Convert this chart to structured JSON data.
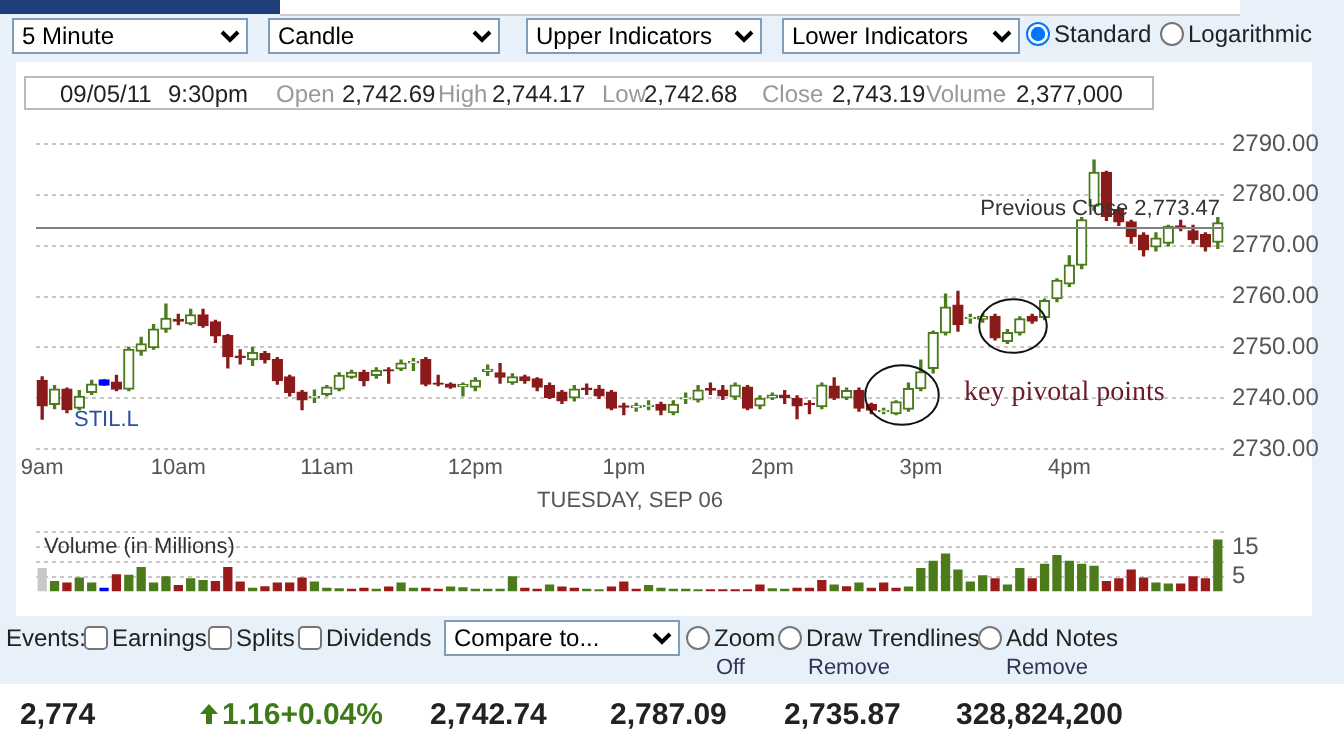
{
  "chart_data": [
    {
      "type": "candlestick",
      "categories": [
        "9am",
        null,
        null,
        null,
        null,
        null,
        null,
        null,
        null,
        null,
        null,
        "10am",
        null,
        null,
        null,
        null,
        null,
        null,
        null,
        null,
        null,
        null,
        null,
        "11am",
        null,
        null,
        null,
        null,
        null,
        null,
        null,
        null,
        null,
        null,
        null,
        "12pm",
        null,
        null,
        null,
        null,
        null,
        null,
        null,
        null,
        null,
        null,
        null,
        "1pm",
        null,
        null,
        null,
        null,
        null,
        null,
        null,
        null,
        null,
        null,
        null,
        "2pm",
        null,
        null,
        null,
        null,
        null,
        null,
        null,
        null,
        null,
        null,
        null,
        "3pm",
        null,
        null,
        null,
        null,
        null,
        null,
        null,
        null,
        null,
        null,
        null,
        "4pm",
        null,
        null,
        null,
        null,
        null,
        null,
        null,
        null,
        null,
        null,
        null,
        null
      ],
      "ohlc": [
        [
          2743.5,
          2744.2,
          2735.9,
          2738.5
        ],
        [
          2738.8,
          2742.5,
          2738,
          2741.8
        ],
        [
          2741.8,
          2742,
          2737.2,
          2737.8
        ],
        [
          2738.1,
          2741.5,
          2737.8,
          2740.4
        ],
        [
          2741.2,
          2743.5,
          2740.8,
          2742.8
        ],
        [
          2743.6,
          2743.6,
          2742.6,
          2742.6
        ],
        [
          2743.2,
          2744.5,
          2741.5,
          2741.8
        ],
        [
          2741.8,
          2750,
          2741.5,
          2749.6
        ],
        [
          2749.3,
          2752,
          2748.5,
          2750.7
        ],
        [
          2750,
          2754.5,
          2749.7,
          2753.6
        ],
        [
          2753.6,
          2758.5,
          2753,
          2755.7
        ],
        [
          2755.5,
          2756.5,
          2754.5,
          2755.2
        ],
        [
          2754.7,
          2757.5,
          2754.5,
          2756.4
        ],
        [
          2756.4,
          2757.5,
          2754,
          2754.3
        ],
        [
          2755,
          2755.3,
          2751,
          2752.3
        ],
        [
          2752.3,
          2752.5,
          2746,
          2748.2
        ],
        [
          2748.3,
          2749.5,
          2746.8,
          2748
        ],
        [
          2747.6,
          2750,
          2746.5,
          2749
        ],
        [
          2748.8,
          2749.2,
          2747,
          2747.6
        ],
        [
          2747.6,
          2748,
          2742.8,
          2743.5
        ],
        [
          2744.2,
          2744.5,
          2740.5,
          2741.2
        ],
        [
          2741.2,
          2741.5,
          2737.8,
          2739.7
        ],
        [
          2740.2,
          2741.6,
          2739.2,
          2740.4
        ],
        [
          2740.8,
          2742.5,
          2740.5,
          2742.2
        ],
        [
          2741.8,
          2745,
          2741.5,
          2744.5
        ],
        [
          2744.2,
          2745.5,
          2744,
          2745.1
        ],
        [
          2745.1,
          2745.5,
          2742.5,
          2743.5
        ],
        [
          2744.5,
          2746,
          2744,
          2745.5
        ],
        [
          2745.6,
          2746,
          2743,
          2745.4
        ],
        [
          2745.8,
          2747.5,
          2745.5,
          2746.9
        ],
        [
          2747,
          2747.8,
          2745.5,
          2747.2
        ],
        [
          2747.6,
          2748,
          2742.5,
          2742.8
        ],
        [
          2743,
          2744.5,
          2742.5,
          2742.8
        ],
        [
          2742.8,
          2743,
          2742,
          2742.2
        ],
        [
          2742.3,
          2743,
          2740.5,
          2742.7
        ],
        [
          2742.2,
          2744,
          2741.5,
          2743.5
        ],
        [
          2745.3,
          2746.5,
          2744.5,
          2745.7
        ],
        [
          2745,
          2746.8,
          2743,
          2744.2
        ],
        [
          2743.1,
          2744.8,
          2742.8,
          2744.2
        ],
        [
          2744.2,
          2744.5,
          2743,
          2743.5
        ],
        [
          2743.8,
          2744,
          2741.5,
          2742.2
        ],
        [
          2742.5,
          2743,
          2740,
          2740.2
        ],
        [
          2741.2,
          2741.5,
          2739,
          2739.5
        ],
        [
          2740.1,
          2742.5,
          2739.5,
          2741.8
        ],
        [
          2742,
          2742.8,
          2740.8,
          2741.7
        ],
        [
          2741.8,
          2742.5,
          2740,
          2740.5
        ],
        [
          2741.2,
          2741.5,
          2737.8,
          2738.1
        ],
        [
          2738.5,
          2739,
          2736.8,
          2738.3
        ],
        [
          2738.2,
          2739,
          2737.5,
          2738.5
        ],
        [
          2738.4,
          2739.5,
          2737.8,
          2738.6
        ],
        [
          2738.8,
          2739.2,
          2736.8,
          2737.7
        ],
        [
          2737.2,
          2739.5,
          2736.8,
          2738.8
        ],
        [
          2739.9,
          2741,
          2739,
          2740.1
        ],
        [
          2739.7,
          2742.5,
          2739.3,
          2741.6
        ],
        [
          2741.9,
          2743,
          2740.8,
          2741.6
        ],
        [
          2741.6,
          2742.5,
          2739.8,
          2740.5
        ],
        [
          2740.3,
          2743,
          2739.8,
          2742.6
        ],
        [
          2742.2,
          2742.5,
          2737.8,
          2738.1
        ],
        [
          2738.5,
          2740.5,
          2738,
          2740
        ],
        [
          2740.1,
          2741,
          2739.8,
          2740.6
        ],
        [
          2740.6,
          2741.5,
          2739,
          2740.2
        ],
        [
          2740,
          2740.5,
          2736,
          2738.5
        ],
        [
          2739,
          2739.5,
          2737,
          2738.8
        ],
        [
          2738.4,
          2743,
          2738,
          2742.6
        ],
        [
          2742.4,
          2744,
          2739.8,
          2740.1
        ],
        [
          2740.1,
          2742,
          2739.8,
          2741.5
        ],
        [
          2741.5,
          2742,
          2737.5,
          2738.1
        ],
        [
          2738.8,
          2739,
          2737,
          2737.7
        ],
        [
          2737.4,
          2738,
          2737,
          2737.6
        ],
        [
          2737,
          2739.5,
          2736.8,
          2739.3
        ],
        [
          2737.9,
          2743,
          2737.5,
          2741.9
        ],
        [
          2741.9,
          2747.5,
          2741.5,
          2745.2
        ],
        [
          2745.9,
          2753.2,
          2745,
          2752.9
        ],
        [
          2752.9,
          2760.5,
          2752.5,
          2757.9
        ],
        [
          2758.3,
          2761,
          2753.2,
          2754.5
        ],
        [
          2755.7,
          2756.5,
          2754.8,
          2755.9
        ],
        [
          2755.6,
          2756.5,
          2755,
          2756.1
        ],
        [
          2756.1,
          2756.5,
          2751.5,
          2751.9
        ],
        [
          2751.2,
          2753.5,
          2750.8,
          2752.9
        ],
        [
          2752.9,
          2756,
          2752.5,
          2755.6
        ],
        [
          2756.1,
          2756.5,
          2754.8,
          2755.2
        ],
        [
          2755.9,
          2759.5,
          2755.5,
          2759.2
        ],
        [
          2759.6,
          2763.5,
          2759,
          2763.2
        ],
        [
          2762.5,
          2768,
          2762,
          2766.2
        ],
        [
          2766.2,
          2775.5,
          2765.5,
          2775.1
        ],
        [
          2777.8,
          2786.8,
          2777,
          2784.4
        ],
        [
          2784.4,
          2784.6,
          2775,
          2775.8
        ],
        [
          2777.1,
          2777.5,
          2774,
          2774.7
        ],
        [
          2774.7,
          2775,
          2770.5,
          2771.8
        ],
        [
          2772.1,
          2772.5,
          2768,
          2769.2
        ],
        [
          2769.8,
          2772.5,
          2769,
          2771.5
        ],
        [
          2770.5,
          2774,
          2770,
          2773.8
        ],
        [
          2773.9,
          2775,
          2773,
          2773.6
        ],
        [
          2772.9,
          2774,
          2770.5,
          2771.2
        ],
        [
          2772.2,
          2772.5,
          2769,
          2769.8
        ],
        [
          2770.7,
          2775.5,
          2769.5,
          2774.5
        ]
      ],
      "colors": [
        "#8b1a1a",
        "#4b7b1b",
        "#8b1a1a",
        "#4b7b1b",
        "#4b7b1b",
        "#0000ff",
        "#8b1a1a",
        "#4b7b1b",
        "#4b7b1b",
        "#4b7b1b",
        "#4b7b1b",
        "#8b1a1a",
        "#4b7b1b",
        "#8b1a1a",
        "#8b1a1a",
        "#8b1a1a",
        "#8b1a1a",
        "#4b7b1b",
        "#8b1a1a",
        "#8b1a1a",
        "#8b1a1a",
        "#8b1a1a",
        "#4b7b1b",
        "#4b7b1b",
        "#4b7b1b",
        "#4b7b1b",
        "#8b1a1a",
        "#4b7b1b",
        "#8b1a1a",
        "#4b7b1b",
        "#4b7b1b",
        "#8b1a1a",
        "#8b1a1a",
        "#8b1a1a",
        "#4b7b1b",
        "#4b7b1b",
        "#4b7b1b",
        "#8b1a1a",
        "#4b7b1b",
        "#8b1a1a",
        "#8b1a1a",
        "#8b1a1a",
        "#8b1a1a",
        "#4b7b1b",
        "#8b1a1a",
        "#8b1a1a",
        "#8b1a1a",
        "#8b1a1a",
        "#4b7b1b",
        "#4b7b1b",
        "#8b1a1a",
        "#4b7b1b",
        "#4b7b1b",
        "#4b7b1b",
        "#8b1a1a",
        "#8b1a1a",
        "#4b7b1b",
        "#8b1a1a",
        "#4b7b1b",
        "#4b7b1b",
        "#8b1a1a",
        "#8b1a1a",
        "#8b1a1a",
        "#4b7b1b",
        "#8b1a1a",
        "#4b7b1b",
        "#8b1a1a",
        "#8b1a1a",
        "#4b7b1b",
        "#4b7b1b",
        "#4b7b1b",
        "#4b7b1b",
        "#4b7b1b",
        "#4b7b1b",
        "#8b1a1a",
        "#4b7b1b",
        "#4b7b1b",
        "#8b1a1a",
        "#4b7b1b",
        "#4b7b1b",
        "#8b1a1a",
        "#4b7b1b",
        "#4b7b1b",
        "#4b7b1b",
        "#4b7b1b",
        "#4b7b1b",
        "#8b1a1a",
        "#8b1a1a",
        "#8b1a1a",
        "#8b1a1a",
        "#4b7b1b",
        "#4b7b1b",
        "#8b1a1a",
        "#8b1a1a",
        "#8b1a1a",
        "#4b7b1b"
      ],
      "xlabel": "TUESDAY, SEP 06",
      "ylim": [
        2730,
        2790
      ],
      "yticks": [
        {
          "value": 2730,
          "label": "2730.00"
        },
        {
          "value": 2740,
          "label": "2740.00"
        },
        {
          "value": 2750,
          "label": "2750.00"
        },
        {
          "value": 2760,
          "label": "2760.00"
        },
        {
          "value": 2770,
          "label": "2770.00"
        },
        {
          "value": 2780,
          "label": "2780.00"
        },
        {
          "value": 2790,
          "label": "2790.00"
        }
      ],
      "grid": "y",
      "ref_lines": [
        {
          "axis": "y",
          "value": 2773.47,
          "label": "Previous Close 2,773.47",
          "color": "#808080"
        }
      ],
      "annotations": [
        "5 Minute",
        "Candle",
        "Upper Indicators",
        "Lower Indicators",
        "Standard",
        "Logarithmic",
        "09/05/11",
        "9:30pm",
        "Open",
        "2,742.69",
        "High",
        "2,744.17",
        "Low",
        "2,742.68",
        "Close",
        "2,743.19",
        "Volume",
        "2,377,000",
        "STIL.L",
        "key pivotal points",
        "Events:",
        "Earnings",
        "Splits",
        "Dividends",
        "Compare to...",
        "Zoom",
        "Off",
        "Draw Trendlines",
        "Remove",
        "Add Notes",
        "Remove",
        "2,774",
        "1.16+0.04%",
        "2,742.74",
        "2,787.09",
        "2,735.87",
        "328,824,200"
      ]
    },
    {
      "type": "bar",
      "title": "Volume (in Millions)",
      "categories": [
        null,
        null,
        null,
        null,
        null,
        null,
        null,
        null,
        null,
        null,
        null,
        null,
        null,
        null,
        null,
        null,
        null,
        null,
        null,
        null,
        null,
        null,
        null,
        null,
        null,
        null,
        null,
        null,
        null,
        null,
        null,
        null,
        null,
        null,
        null,
        null,
        null,
        null,
        null,
        null,
        null,
        null,
        null,
        null,
        null,
        null,
        null,
        null,
        null,
        null,
        null,
        null,
        null,
        null,
        null,
        null,
        null,
        null,
        null,
        null,
        null,
        null,
        null,
        null,
        null,
        null,
        null,
        null,
        null,
        null,
        null,
        null,
        null,
        null,
        null,
        null,
        null,
        null,
        null,
        null,
        null,
        null,
        null,
        null,
        null,
        null,
        null,
        null,
        null,
        null,
        null,
        null,
        null,
        null,
        null,
        null
      ],
      "values": [
        8.0,
        3.6,
        3.1,
        4.8,
        3.1,
        1.3,
        5.9,
        5.7,
        8.3,
        3.1,
        5.2,
        2.2,
        4.5,
        3.9,
        3.6,
        8.3,
        3.4,
        1.3,
        1.8,
        3.1,
        3.1,
        4.8,
        3.4,
        1.3,
        1.1,
        1.0,
        1.3,
        1.0,
        1.7,
        3.1,
        1.3,
        1.3,
        1.0,
        1.7,
        1.5,
        1.0,
        1.0,
        1.0,
        5.2,
        1.3,
        1.0,
        2.4,
        1.7,
        1.3,
        1.0,
        0.8,
        1.7,
        3.4,
        1.0,
        2.2,
        1.3,
        1.0,
        1.0,
        0.8,
        0.8,
        0.8,
        0.8,
        0.8,
        2.4,
        1.1,
        1.0,
        1.3,
        1.3,
        3.9,
        2.4,
        1.8,
        3.1,
        1.3,
        3.1,
        1.3,
        1.7,
        8.0,
        10.4,
        12.9,
        7.5,
        3.4,
        5.5,
        4.5,
        2.4,
        8.0,
        4.5,
        9.4,
        12.4,
        10.4,
        9.4,
        8.7,
        3.6,
        4.5,
        7.5,
        4.8,
        3.1,
        2.7,
        2.7,
        5.2,
        4.5,
        17.6
      ],
      "colors": [
        "#c8c8c8",
        "#4b7b1b",
        "#9b1b1b",
        "#4b7b1b",
        "#4b7b1b",
        "#0000ff",
        "#9b1b1b",
        "#4b7b1b",
        "#4b7b1b",
        "#4b7b1b",
        "#4b7b1b",
        "#9b1b1b",
        "#4b7b1b",
        "#4b7b1b",
        "#9b1b1b",
        "#9b1b1b",
        "#9b1b1b",
        "#4b7b1b",
        "#9b1b1b",
        "#9b1b1b",
        "#9b1b1b",
        "#9b1b1b",
        "#4b7b1b",
        "#4b7b1b",
        "#4b7b1b",
        "#9b1b1b",
        "#9b1b1b",
        "#4b7b1b",
        "#9b1b1b",
        "#4b7b1b",
        "#4b7b1b",
        "#9b1b1b",
        "#9b1b1b",
        "#4b7b1b",
        "#4b7b1b",
        "#4b7b1b",
        "#4b7b1b",
        "#4b7b1b",
        "#4b7b1b",
        "#9b1b1b",
        "#9b1b1b",
        "#4b7b1b",
        "#9b1b1b",
        "#9b1b1b",
        "#4b7b1b",
        "#4b7b1b",
        "#9b1b1b",
        "#9b1b1b",
        "#9b1b1b",
        "#4b7b1b",
        "#4b7b1b",
        "#4b7b1b",
        "#4b7b1b",
        "#4b7b1b",
        "#9b1b1b",
        "#9b1b1b",
        "#9b1b1b",
        "#9b1b1b",
        "#9b1b1b",
        "#4b7b1b",
        "#4b7b1b",
        "#9b1b1b",
        "#9b1b1b",
        "#9b1b1b",
        "#4b7b1b",
        "#9b1b1b",
        "#4b7b1b",
        "#9b1b1b",
        "#9b1b1b",
        "#9b1b1b",
        "#4b7b1b",
        "#4b7b1b",
        "#4b7b1b",
        "#4b7b1b",
        "#4b7b1b",
        "#4b7b1b",
        "#4b7b1b",
        "#9b1b1b",
        "#4b7b1b",
        "#4b7b1b",
        "#9b1b1b",
        "#4b7b1b",
        "#4b7b1b",
        "#4b7b1b",
        "#4b7b1b",
        "#4b7b1b",
        "#9b1b1b",
        "#9b1b1b",
        "#9b1b1b",
        "#9b1b1b",
        "#4b7b1b",
        "#4b7b1b",
        "#9b1b1b",
        "#9b1b1b",
        "#9b1b1b",
        "#4b7b1b"
      ],
      "ylim": [
        0,
        20
      ],
      "yticks": [
        {
          "value": 5,
          "label": "5"
        },
        {
          "value": 10,
          "label": null
        },
        {
          "value": 15,
          "label": "15"
        },
        {
          "value": 20,
          "label": null
        }
      ],
      "grid": "y",
      "tick_labels": "y"
    }
  ]
}
